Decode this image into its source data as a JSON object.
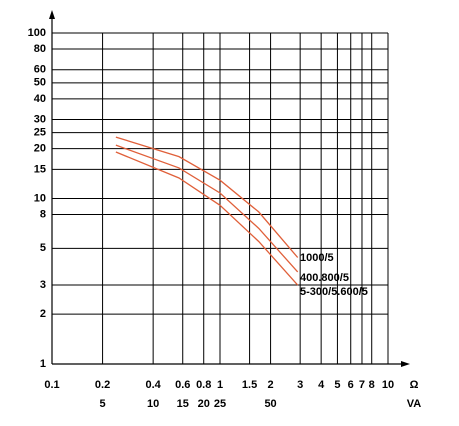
{
  "chart_data": {
    "type": "line",
    "log_x": true,
    "log_y": true,
    "grid": true,
    "xlim": [
      0.1,
      10
    ],
    "ylim": [
      1,
      100
    ],
    "xticks": [
      0.1,
      0.2,
      0.4,
      0.6,
      0.8,
      1,
      1.5,
      2,
      3,
      4,
      5,
      6,
      7,
      8,
      10
    ],
    "yticks": [
      1,
      2,
      3,
      5,
      8,
      10,
      15,
      20,
      25,
      30,
      40,
      50,
      60,
      80,
      100
    ],
    "x2lim": [
      2.5,
      250
    ],
    "x2ticks": [
      5,
      10,
      15,
      20,
      25,
      50
    ],
    "xlabel": "Ω",
    "x2label": "VA",
    "x": [
      0.24,
      0.57,
      1,
      1.7,
      2.9
    ],
    "series": [
      {
        "name": "1000/5",
        "color": "#e0603a",
        "values": [
          23.5,
          17.9,
          12.9,
          8.3,
          4.4
        ]
      },
      {
        "name": "400.800/5",
        "color": "#e0603a",
        "values": [
          21,
          15.3,
          10.8,
          6.6,
          3.6
        ]
      },
      {
        "name": "5-300/5.600/5",
        "color": "#e0603a",
        "values": [
          19.1,
          13.3,
          9.1,
          5.5,
          3.0
        ]
      }
    ]
  }
}
